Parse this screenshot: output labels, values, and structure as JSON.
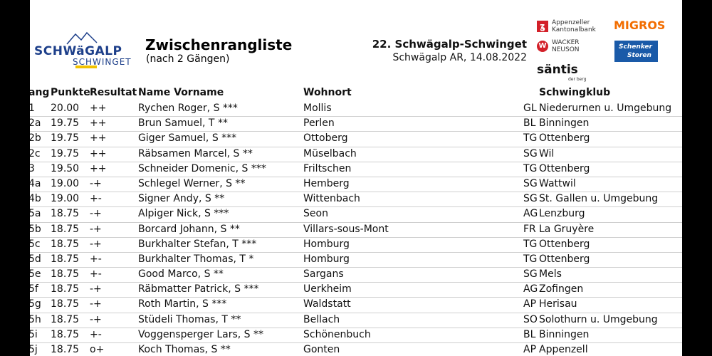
{
  "logo": {
    "word": "SCHWäGALP",
    "sub": "SCHWINGET"
  },
  "title": "Zwischenrangliste",
  "subtitle": "(nach 2 Gängen)",
  "event": "22. Schwägalp-Schwinget",
  "venue": "Schwägalp AR, 14.08.2022",
  "sponsors": {
    "akb_line1": "Appenzeller",
    "akb_line2": "Kantonalbank",
    "migros": "MIGROS",
    "wacker_line1": "WACKER",
    "wacker_line2": "NEUSON",
    "schenker_line1": "Schenker",
    "schenker_line2": "Storen",
    "saentis": "säntis",
    "saentis_sub": "der berg"
  },
  "headers": {
    "rang": "ang",
    "punkte": "Punkte",
    "resultat": "Resultat",
    "name": "Name Vorname",
    "wohnort": "Wohnort",
    "schwingklub": "Schwingklub"
  },
  "rows": [
    {
      "rang": "1",
      "punkte": "20.00",
      "resultat": "++",
      "name": "Rychen Roger, S ***",
      "wohnort": "Mollis",
      "kanton": "GL",
      "klub": "Niederurnen u. Umgebung"
    },
    {
      "rang": "2a",
      "punkte": "19.75",
      "resultat": "++",
      "name": "Brun Samuel, T **",
      "wohnort": "Perlen",
      "kanton": "BL",
      "klub": "Binningen"
    },
    {
      "rang": "2b",
      "punkte": "19.75",
      "resultat": "++",
      "name": "Giger Samuel, S ***",
      "wohnort": "Ottoberg",
      "kanton": "TG",
      "klub": "Ottenberg"
    },
    {
      "rang": "2c",
      "punkte": "19.75",
      "resultat": "++",
      "name": "Räbsamen Marcel, S **",
      "wohnort": "Müselbach",
      "kanton": "SG",
      "klub": "Wil"
    },
    {
      "rang": "3",
      "punkte": "19.50",
      "resultat": "++",
      "name": "Schneider Domenic, S ***",
      "wohnort": "Friltschen",
      "kanton": "TG",
      "klub": "Ottenberg"
    },
    {
      "rang": "4a",
      "punkte": "19.00",
      "resultat": "-+",
      "name": "Schlegel Werner, S **",
      "wohnort": "Hemberg",
      "kanton": "SG",
      "klub": "Wattwil"
    },
    {
      "rang": "4b",
      "punkte": "19.00",
      "resultat": "+-",
      "name": "Signer Andy, S **",
      "wohnort": "Wittenbach",
      "kanton": "SG",
      "klub": "St. Gallen u. Umgebung"
    },
    {
      "rang": "5a",
      "punkte": "18.75",
      "resultat": "-+",
      "name": "Alpiger Nick, S ***",
      "wohnort": "Seon",
      "kanton": "AG",
      "klub": "Lenzburg"
    },
    {
      "rang": "5b",
      "punkte": "18.75",
      "resultat": "-+",
      "name": "Borcard Johann, S **",
      "wohnort": "Villars-sous-Mont",
      "kanton": "FR",
      "klub": "La Gruyère"
    },
    {
      "rang": "5c",
      "punkte": "18.75",
      "resultat": "-+",
      "name": "Burkhalter Stefan, T ***",
      "wohnort": "Homburg",
      "kanton": "TG",
      "klub": "Ottenberg"
    },
    {
      "rang": "5d",
      "punkte": "18.75",
      "resultat": "+-",
      "name": "Burkhalter Thomas, T *",
      "wohnort": "Homburg",
      "kanton": "TG",
      "klub": "Ottenberg"
    },
    {
      "rang": "5e",
      "punkte": "18.75",
      "resultat": "+-",
      "name": "Good Marco, S **",
      "wohnort": "Sargans",
      "kanton": "SG",
      "klub": "Mels"
    },
    {
      "rang": "5f",
      "punkte": "18.75",
      "resultat": "-+",
      "name": "Räbmatter Patrick, S ***",
      "wohnort": "Uerkheim",
      "kanton": "AG",
      "klub": "Zofingen"
    },
    {
      "rang": "5g",
      "punkte": "18.75",
      "resultat": "-+",
      "name": "Roth Martin, S ***",
      "wohnort": "Waldstatt",
      "kanton": "AP",
      "klub": "Herisau"
    },
    {
      "rang": "5h",
      "punkte": "18.75",
      "resultat": "-+",
      "name": "Stüdeli Thomas, T **",
      "wohnort": "Bellach",
      "kanton": "SO",
      "klub": "Solothurn u. Umgebung"
    },
    {
      "rang": "5i",
      "punkte": "18.75",
      "resultat": "+-",
      "name": "Voggensperger Lars, S **",
      "wohnort": "Schönenbuch",
      "kanton": "BL",
      "klub": "Binningen"
    },
    {
      "rang": "5j",
      "punkte": "18.75",
      "resultat": "o+",
      "name": "Koch Thomas, S **",
      "wohnort": "Gonten",
      "kanton": "AP",
      "klub": "Appenzell"
    }
  ]
}
